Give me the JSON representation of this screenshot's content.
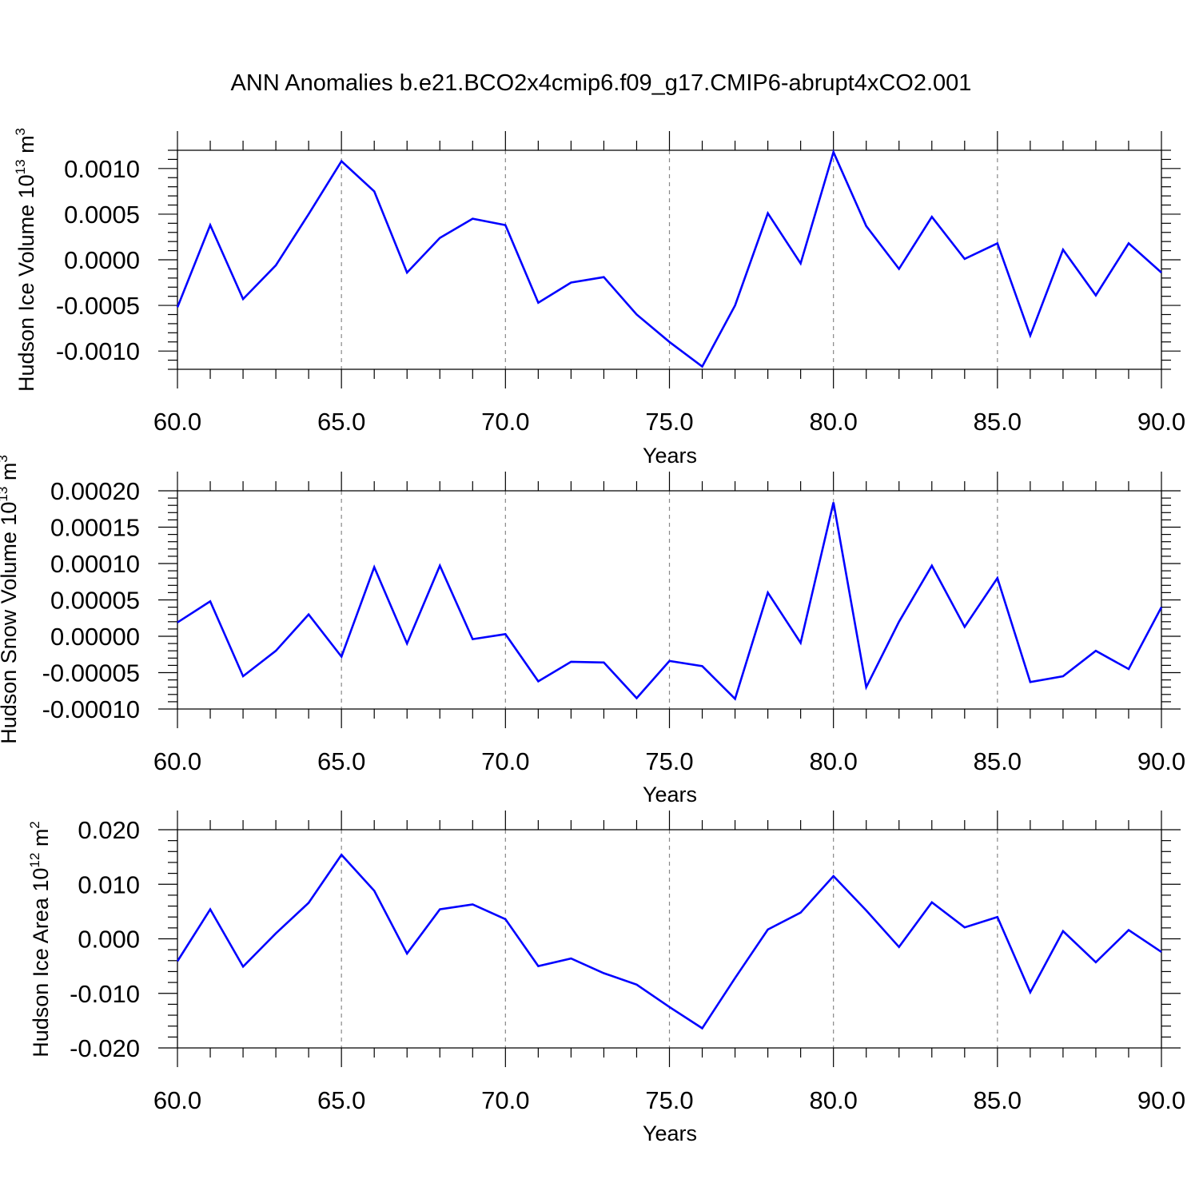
{
  "title": "ANN Anomalies b.e21.BCO2x4cmip6.f09_g17.CMIP6-abrupt4xCO2.001",
  "colors": {
    "line": "#0000ff",
    "axis": "#000000",
    "grid": "#888888"
  },
  "chart_data": [
    {
      "type": "line",
      "ylabel_main": "Hudson Ice Volume 10",
      "ylabel_exp": "13",
      "ylabel_unit": "m",
      "ylabel_unit_exp": "3",
      "xlabel": "Years",
      "xlim": [
        60,
        90
      ],
      "ylim": [
        -0.0012,
        0.0012
      ],
      "yticks": [
        -0.001,
        -0.0005,
        0.0,
        0.0005,
        0.001
      ],
      "ytick_labels": [
        "-0.0010",
        "-0.0005",
        "0.0000",
        "0.0005",
        "0.0010"
      ],
      "xticks": [
        60,
        65,
        70,
        75,
        80,
        85,
        90
      ],
      "xtick_labels": [
        "60.0",
        "65.0",
        "70.0",
        "75.0",
        "80.0",
        "85.0",
        "90.0"
      ],
      "grid": "dashed vertical at major x ticks",
      "x": [
        60,
        61,
        62,
        63,
        64,
        65,
        66,
        67,
        68,
        69,
        70,
        71,
        72,
        73,
        74,
        75,
        76,
        77,
        78,
        79,
        80,
        81,
        82,
        83,
        84,
        85,
        86,
        87,
        88,
        89,
        90
      ],
      "values": [
        -0.00052,
        0.00038,
        -0.00043,
        -6e-05,
        0.0005,
        0.00108,
        0.00075,
        -0.00014,
        0.00024,
        0.00045,
        0.00038,
        -0.00047,
        -0.00025,
        -0.00019,
        -0.0006,
        -0.0009,
        -0.00117,
        -0.0005,
        0.00051,
        -4e-05,
        0.00118,
        0.00037,
        -0.0001,
        0.00047,
        1e-05,
        0.00018,
        -0.00083,
        0.00011,
        -0.00039,
        0.00018,
        -0.00014
      ]
    },
    {
      "type": "line",
      "ylabel_main": "Hudson Snow Volume 10",
      "ylabel_exp": "13",
      "ylabel_unit": "m",
      "ylabel_unit_exp": "3",
      "xlabel": "Years",
      "xlim": [
        60,
        90
      ],
      "ylim": [
        -0.0001,
        0.0002
      ],
      "yticks": [
        -0.0001,
        -5e-05,
        0.0,
        5e-05,
        0.0001,
        0.00015,
        0.0002
      ],
      "ytick_labels": [
        "-0.00010",
        "-0.00005",
        "0.00000",
        "0.00005",
        "0.00010",
        "0.00015",
        "0.00020"
      ],
      "xticks": [
        60,
        65,
        70,
        75,
        80,
        85,
        90
      ],
      "xtick_labels": [
        "60.0",
        "65.0",
        "70.0",
        "75.0",
        "80.0",
        "85.0",
        "90.0"
      ],
      "grid": "dashed vertical at major x ticks",
      "x": [
        60,
        61,
        62,
        63,
        64,
        65,
        66,
        67,
        68,
        69,
        70,
        71,
        72,
        73,
        74,
        75,
        76,
        77,
        78,
        79,
        80,
        81,
        82,
        83,
        84,
        85,
        86,
        87,
        88,
        89,
        90
      ],
      "values": [
        1.9e-05,
        4.8e-05,
        -5.5e-05,
        -2e-05,
        3e-05,
        -2.8e-05,
        9.5e-05,
        -1e-05,
        9.7e-05,
        -4e-06,
        3e-06,
        -6.2e-05,
        -3.5e-05,
        -3.6e-05,
        -8.5e-05,
        -3.4e-05,
        -4.1e-05,
        -8.6e-05,
        6e-05,
        -9e-06,
        0.000184,
        -7e-05,
        2e-05,
        9.7e-05,
        1.3e-05,
        8e-05,
        -6.3e-05,
        -5.5e-05,
        -2e-05,
        -4.5e-05,
        4e-05
      ]
    },
    {
      "type": "line",
      "ylabel_main": "Hudson Ice Area 10",
      "ylabel_exp": "12",
      "ylabel_unit": "m",
      "ylabel_unit_exp": "2",
      "xlabel": "Years",
      "xlim": [
        60,
        90
      ],
      "ylim": [
        -0.02,
        0.02
      ],
      "yticks": [
        -0.02,
        -0.01,
        0.0,
        0.01,
        0.02
      ],
      "ytick_labels": [
        "-0.020",
        "-0.010",
        "0.000",
        "0.010",
        "0.020"
      ],
      "xticks": [
        60,
        65,
        70,
        75,
        80,
        85,
        90
      ],
      "xtick_labels": [
        "60.0",
        "65.0",
        "70.0",
        "75.0",
        "80.0",
        "85.0",
        "90.0"
      ],
      "grid": "dashed vertical at major x ticks",
      "x": [
        60,
        61,
        62,
        63,
        64,
        65,
        66,
        67,
        68,
        69,
        70,
        71,
        72,
        73,
        74,
        75,
        76,
        77,
        78,
        79,
        80,
        81,
        82,
        83,
        84,
        85,
        86,
        87,
        88,
        89,
        90
      ],
      "values": [
        -0.0041,
        0.0054,
        -0.0051,
        0.001,
        0.0066,
        0.0154,
        0.0088,
        -0.0027,
        0.0054,
        0.0063,
        0.0036,
        -0.005,
        -0.0036,
        -0.0063,
        -0.0084,
        -0.0125,
        -0.0164,
        -0.0072,
        0.0017,
        0.0048,
        0.0115,
        0.0052,
        -0.0015,
        0.0067,
        0.0021,
        0.004,
        -0.0098,
        0.0014,
        -0.0043,
        0.0016,
        -0.0024
      ]
    }
  ]
}
